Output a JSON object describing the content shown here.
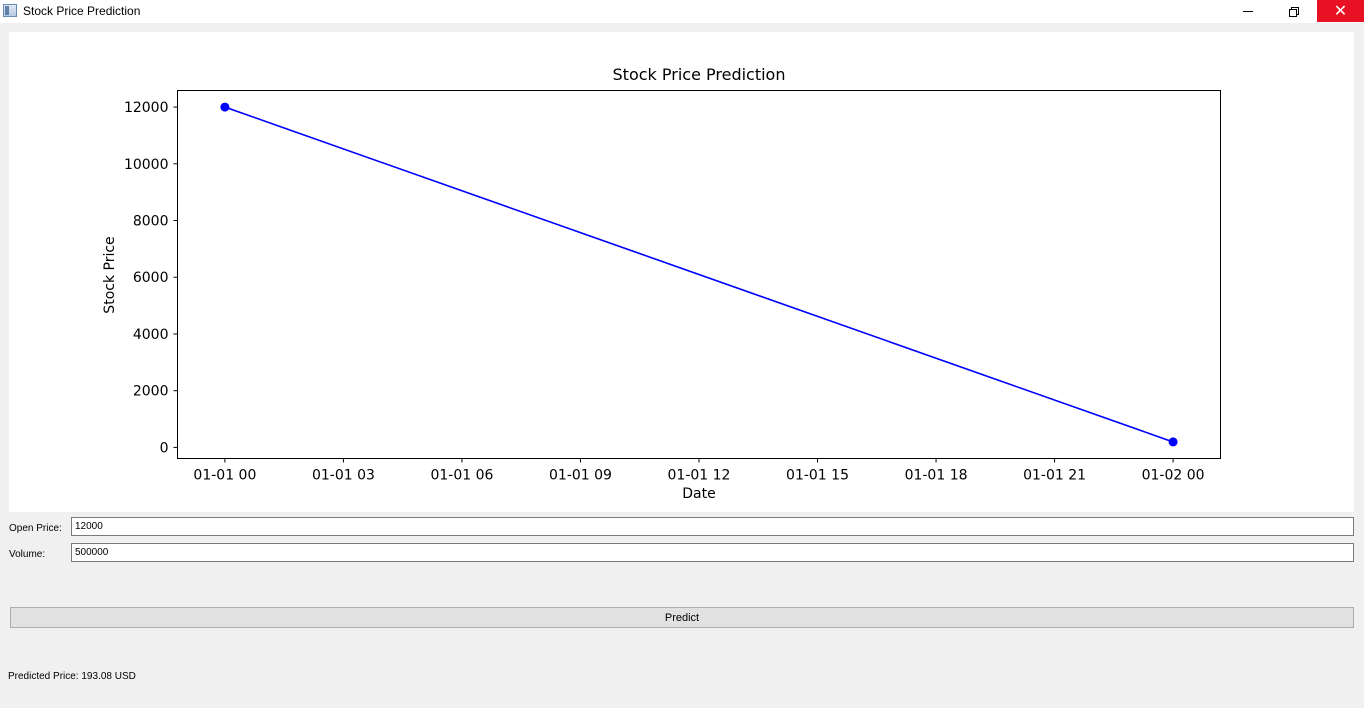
{
  "window": {
    "title": "Stock Price Prediction"
  },
  "controls": {
    "minimize_icon": "minimize-icon",
    "maximize_icon": "restore-icon",
    "close_icon": "close-icon",
    "close_glyph": "✕",
    "close_color": "#e81123"
  },
  "chart_data": {
    "type": "line",
    "title": "Stock Price Prediction",
    "xlabel": "Date",
    "ylabel": "Stock Price",
    "x": [
      "2024-01-01 00:00",
      "2024-01-02 00:00"
    ],
    "series": [
      {
        "values": [
          12000,
          193.08
        ],
        "color": "#0000ff",
        "marker": "circle"
      }
    ],
    "xticks": [
      "01-01 00",
      "01-01 03",
      "01-01 06",
      "01-01 09",
      "01-01 12",
      "01-01 15",
      "01-01 18",
      "01-01 21",
      "01-02 00"
    ],
    "yticks": [
      "0",
      "2000",
      "4000",
      "6000",
      "8000",
      "10000",
      "12000"
    ],
    "xlim": [
      "2023-12-31 22:48",
      "2024-01-02 01:12"
    ],
    "ylim": [
      -391,
      12584
    ],
    "grid": false,
    "legend": "none"
  },
  "form": {
    "open_price_label": "Open Price:",
    "open_price_value": "12000",
    "volume_label": "Volume:",
    "volume_value": "500000"
  },
  "predict_button": {
    "label": "Predict"
  },
  "result": {
    "text": "Predicted Price: 193.08 USD"
  }
}
